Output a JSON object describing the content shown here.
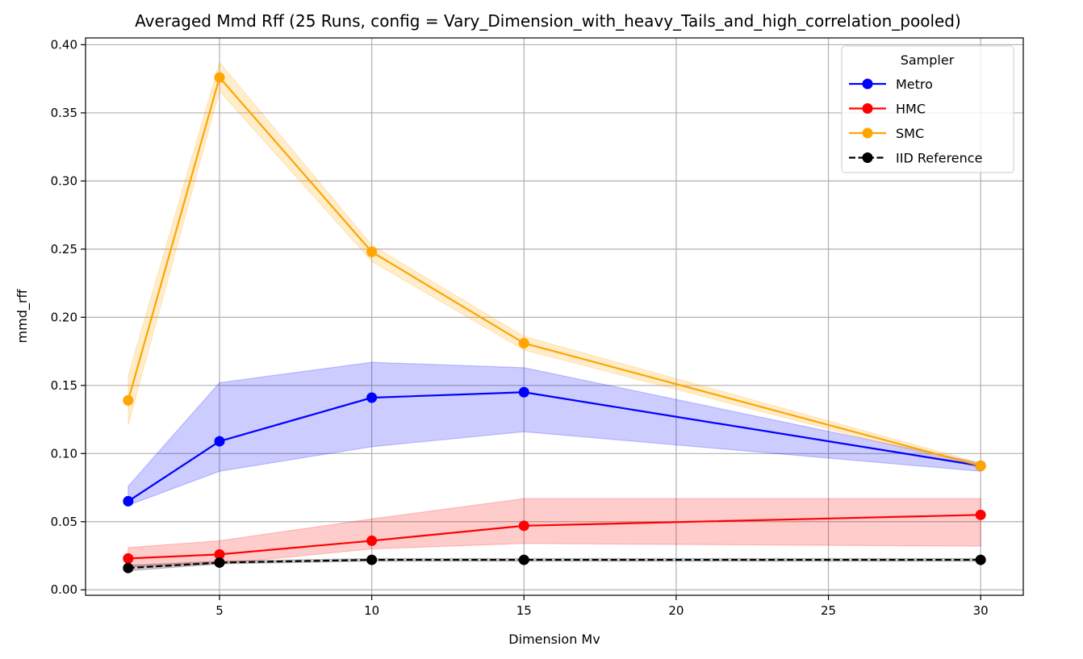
{
  "chart_data": {
    "type": "line",
    "title": "Averaged Mmd Rff (25 Runs, config = Vary_Dimension_with_heavy_Tails_and_high_correlation_pooled)",
    "xlabel": "Dimension Mv",
    "ylabel": "mmd_rff",
    "xlim": [
      0.6,
      31.4
    ],
    "ylim": [
      -0.004,
      0.405
    ],
    "xticks": [
      5,
      10,
      15,
      20,
      25,
      30
    ],
    "yticks": [
      0.0,
      0.05,
      0.1,
      0.15,
      0.2,
      0.25,
      0.3,
      0.35,
      0.4
    ],
    "ytick_labels": [
      "0.00",
      "0.05",
      "0.10",
      "0.15",
      "0.20",
      "0.25",
      "0.30",
      "0.35",
      "0.40"
    ],
    "grid": true,
    "legend": {
      "title": "Sampler",
      "position": "top-right"
    },
    "x": [
      2,
      5,
      10,
      15,
      30
    ],
    "series": [
      {
        "name": "Metro",
        "color": "#0000ff",
        "dashed": false,
        "values": [
          0.065,
          0.109,
          0.141,
          0.145,
          0.091
        ],
        "lower": [
          0.062,
          0.087,
          0.105,
          0.116,
          0.087
        ],
        "upper": [
          0.076,
          0.152,
          0.167,
          0.163,
          0.093
        ]
      },
      {
        "name": "HMC",
        "color": "#ff0000",
        "dashed": false,
        "values": [
          0.023,
          0.026,
          0.036,
          0.047,
          0.055
        ],
        "lower": [
          0.017,
          0.019,
          0.03,
          0.034,
          0.032
        ],
        "upper": [
          0.031,
          0.036,
          0.052,
          0.067,
          0.067
        ]
      },
      {
        "name": "SMC",
        "color": "#ffa500",
        "dashed": false,
        "values": [
          0.139,
          0.376,
          0.248,
          0.181,
          0.091
        ],
        "lower": [
          0.121,
          0.366,
          0.241,
          0.176,
          0.089
        ],
        "upper": [
          0.157,
          0.387,
          0.253,
          0.186,
          0.093
        ]
      },
      {
        "name": "IID Reference",
        "color": "#000000",
        "dashed": true,
        "values": [
          0.016,
          0.02,
          0.022,
          0.022,
          0.022
        ],
        "lower": [
          0.014,
          0.019,
          0.021,
          0.021,
          0.021
        ],
        "upper": [
          0.018,
          0.021,
          0.023,
          0.023,
          0.023
        ]
      }
    ]
  }
}
